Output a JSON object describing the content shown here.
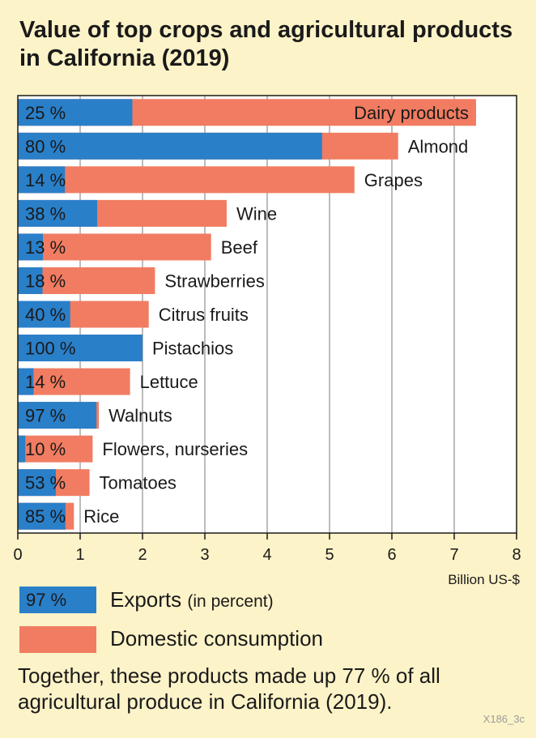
{
  "title": "Value of top crops and agricultural products in California (2019)",
  "colors": {
    "exports": "#2a7fc9",
    "domestic": "#f17c61",
    "background": "#fdf3c8",
    "plot_bg": "#ffffff"
  },
  "chart_data": {
    "type": "bar",
    "orientation": "horizontal",
    "stacked": true,
    "categories": [
      "Dairy products",
      "Almond",
      "Grapes",
      "Wine",
      "Beef",
      "Strawberries",
      "Citrus fruits",
      "Pistachios",
      "Lettuce",
      "Walnuts",
      "Flowers, nurseries",
      "Tomatoes",
      "Rice"
    ],
    "total_values": [
      7.35,
      6.1,
      5.4,
      3.35,
      3.1,
      2.2,
      2.1,
      2.0,
      1.8,
      1.3,
      1.2,
      1.15,
      0.9
    ],
    "export_share_labels": [
      "25 %",
      "80 %",
      "14 %",
      "38 %",
      "13 %",
      "18 %",
      "40 %",
      "100 %",
      "14 %",
      "97 %",
      "10 %",
      "53 %",
      "85 %"
    ],
    "export_share": [
      25,
      80,
      14,
      38,
      13,
      18,
      40,
      100,
      14,
      97,
      10,
      53,
      85
    ],
    "series": [
      {
        "name": "Exports (in percent)"
      },
      {
        "name": "Domestic consumption"
      }
    ],
    "xlabel": "Billion US-$",
    "xlim": [
      0,
      8
    ],
    "xticks": [
      "0",
      "1",
      "2",
      "3",
      "4",
      "5",
      "6",
      "7",
      "8"
    ],
    "grid": true,
    "legend": "bottom"
  },
  "legend": {
    "exports_swatch_label": "97 %",
    "exports_label": "Exports",
    "exports_sub": "(in percent)",
    "domestic_label": "Domestic consumption"
  },
  "note": "Together, these products made up 77 % of all agricultural produce in California (2019).",
  "code": "X186_3c"
}
